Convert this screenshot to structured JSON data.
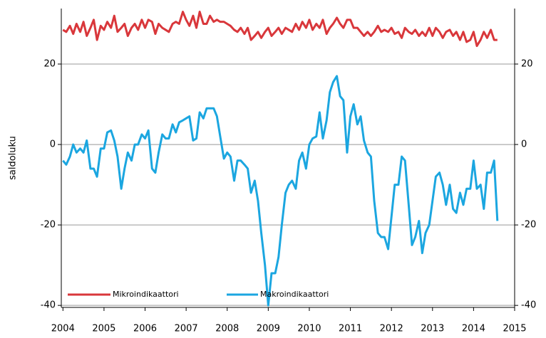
{
  "chart_data": {
    "type": "line",
    "y_label": "saldoluku",
    "legend": "lower left",
    "grid": true,
    "xlim": [
      2003.96,
      2015
    ],
    "xticks": [
      2004,
      2005,
      2006,
      2007,
      2008,
      2009,
      2010,
      2011,
      2012,
      2013,
      2014,
      2015
    ],
    "ylim": [
      -40.5,
      33.8
    ],
    "yticks": [
      20,
      0,
      -20,
      -40
    ],
    "y2lim": [
      -40.5,
      33.8
    ],
    "y2ticks": [
      20,
      0,
      -20,
      -40
    ],
    "x": [
      2004,
      2004.08,
      2004.17,
      2004.25,
      2004.33,
      2004.42,
      2004.5,
      2004.58,
      2004.67,
      2004.75,
      2004.83,
      2004.92,
      2005,
      2005.08,
      2005.17,
      2005.25,
      2005.33,
      2005.42,
      2005.5,
      2005.58,
      2005.67,
      2005.75,
      2005.83,
      2005.92,
      2006,
      2006.08,
      2006.17,
      2006.25,
      2006.33,
      2006.42,
      2006.5,
      2006.58,
      2006.67,
      2006.75,
      2006.83,
      2006.92,
      2007,
      2007.08,
      2007.17,
      2007.25,
      2007.33,
      2007.42,
      2007.5,
      2007.58,
      2007.67,
      2007.75,
      2007.83,
      2007.92,
      2008,
      2008.08,
      2008.17,
      2008.25,
      2008.33,
      2008.42,
      2008.5,
      2008.58,
      2008.67,
      2008.75,
      2008.83,
      2008.92,
      2009,
      2009.08,
      2009.17,
      2009.25,
      2009.33,
      2009.42,
      2009.5,
      2009.58,
      2009.67,
      2009.75,
      2009.83,
      2009.92,
      2010,
      2010.08,
      2010.17,
      2010.25,
      2010.33,
      2010.42,
      2010.5,
      2010.58,
      2010.67,
      2010.75,
      2010.83,
      2010.92,
      2011,
      2011.08,
      2011.17,
      2011.25,
      2011.33,
      2011.42,
      2011.5,
      2011.58,
      2011.67,
      2011.75,
      2011.83,
      2011.92,
      2012,
      2012.08,
      2012.17,
      2012.25,
      2012.33,
      2012.42,
      2012.5,
      2012.58,
      2012.67,
      2012.75,
      2012.83,
      2012.92,
      2013,
      2013.08,
      2013.17,
      2013.25,
      2013.33,
      2013.42,
      2013.5,
      2013.58,
      2013.67,
      2013.75,
      2013.83,
      2013.92,
      2014,
      2014.08,
      2014.17,
      2014.25,
      2014.33,
      2014.42,
      2014.5,
      2014.58
    ],
    "series": [
      {
        "name": "Mikroindikaattori",
        "color": "#d9373b",
        "values": [
          28.5,
          28,
          29.5,
          27.5,
          30,
          28,
          30.5,
          27,
          29,
          31,
          26,
          29.5,
          28.5,
          30.5,
          29,
          32,
          28,
          29,
          30,
          27,
          29,
          30,
          28.5,
          31,
          29,
          31,
          30.5,
          27.5,
          30,
          29,
          28.5,
          28,
          30,
          30.5,
          30,
          33,
          31,
          29.5,
          32,
          29,
          33,
          30,
          30,
          32,
          30.5,
          31,
          30.5,
          30.5,
          30,
          29.5,
          28.5,
          28,
          29,
          27.5,
          29,
          26,
          27,
          28,
          26.5,
          28,
          29,
          27,
          28,
          29,
          27.5,
          29,
          28.5,
          28,
          30,
          28.5,
          30.5,
          29,
          31,
          28.5,
          30,
          29,
          31,
          27.5,
          29,
          30,
          31.5,
          30,
          29,
          31,
          31,
          29,
          29,
          28,
          27,
          28,
          27,
          28,
          29.5,
          28,
          28.5,
          28,
          29,
          27.5,
          28,
          26.5,
          29,
          28,
          27.5,
          28.5,
          27,
          28,
          27,
          29,
          27,
          29,
          28,
          26.5,
          28,
          28.5,
          27,
          28,
          26,
          28,
          25.5,
          26,
          28,
          24.5,
          26,
          28,
          26.5,
          28.5,
          26,
          26
        ]
      },
      {
        "name": "Makroindikaattori",
        "color": "#1ba6e0",
        "values": [
          -4,
          -5,
          -3,
          0,
          -2,
          -1,
          -2,
          1,
          -6,
          -6,
          -8,
          -1,
          -1,
          3,
          3.5,
          1,
          -3,
          -11,
          -6,
          -2,
          -4,
          0,
          0,
          2.5,
          1.5,
          3.5,
          -6,
          -7,
          -2,
          2.5,
          1.5,
          1.5,
          5,
          3,
          5.5,
          6,
          6.5,
          7,
          1,
          1.5,
          8,
          6.5,
          9,
          9,
          9,
          7,
          2,
          -3.5,
          -2,
          -3,
          -9,
          -4,
          -4,
          -5,
          -6,
          -12,
          -9,
          -14,
          -22,
          -30,
          -40,
          -32,
          -32,
          -28,
          -20,
          -12,
          -10,
          -9,
          -11,
          -4,
          -2,
          -6,
          0,
          1.5,
          2,
          8,
          1.5,
          6,
          13,
          15.5,
          17,
          12,
          11,
          -2,
          7,
          10,
          5,
          7,
          1,
          -2,
          -3,
          -14,
          -22,
          -23,
          -23,
          -26,
          -18,
          -10,
          -10,
          -3,
          -4,
          -15,
          -25,
          -23,
          -19,
          -27,
          -22,
          -20,
          -14,
          -8,
          -7,
          -10,
          -15,
          -10,
          -16,
          -17,
          -12,
          -15,
          -11,
          -11,
          -4,
          -11,
          -10,
          -16,
          -7,
          -7,
          -4,
          -19
        ]
      }
    ]
  }
}
